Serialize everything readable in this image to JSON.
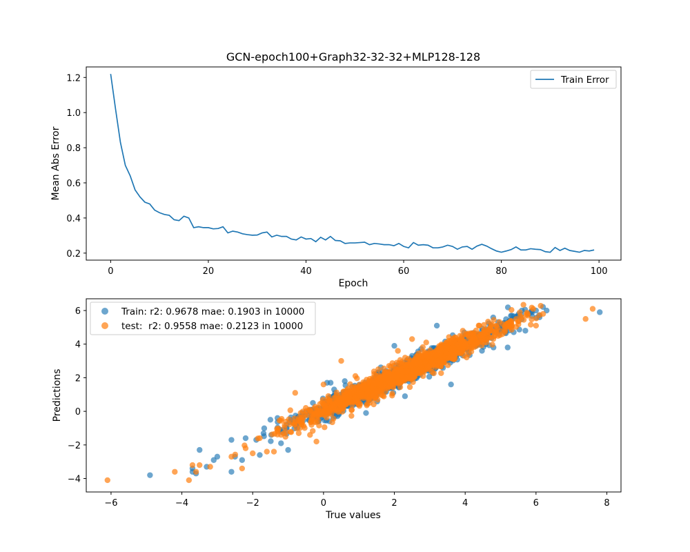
{
  "figure": {
    "title": "GCN-epoch100+Graph32-32-32+MLP128-128"
  },
  "chart_data": [
    {
      "type": "line",
      "xlabel": "Epoch",
      "ylabel": "Mean Abs Error",
      "xlim": [
        -5,
        104.5
      ],
      "ylim": [
        0.16,
        1.26
      ],
      "xticks": [
        "0",
        "20",
        "40",
        "60",
        "80",
        "100"
      ],
      "yticks": [
        "0.2",
        "0.4",
        "0.6",
        "0.8",
        "1.0",
        "1.2"
      ],
      "legend_position": "upper right",
      "grid": false,
      "series": [
        {
          "name": "Train Error",
          "color": "#1f77b4",
          "x": [
            0,
            1,
            2,
            3,
            4,
            5,
            6,
            7,
            8,
            9,
            10,
            11,
            12,
            13,
            14,
            15,
            16,
            17,
            18,
            19,
            20,
            21,
            22,
            23,
            24,
            25,
            26,
            27,
            28,
            29,
            30,
            31,
            32,
            33,
            34,
            35,
            36,
            37,
            38,
            39,
            40,
            41,
            42,
            43,
            44,
            45,
            46,
            47,
            48,
            49,
            50,
            51,
            52,
            53,
            54,
            55,
            56,
            57,
            58,
            59,
            60,
            61,
            62,
            63,
            64,
            65,
            66,
            67,
            68,
            69,
            70,
            71,
            72,
            73,
            74,
            75,
            76,
            77,
            78,
            79,
            80,
            81,
            82,
            83,
            84,
            85,
            86,
            87,
            88,
            89,
            90,
            91,
            92,
            93,
            94,
            95,
            96,
            97,
            98,
            99
          ],
          "values": [
            1.22,
            1.02,
            0.83,
            0.7,
            0.64,
            0.56,
            0.52,
            0.49,
            0.48,
            0.445,
            0.43,
            0.42,
            0.415,
            0.39,
            0.385,
            0.41,
            0.4,
            0.345,
            0.35,
            0.345,
            0.345,
            0.338,
            0.34,
            0.35,
            0.315,
            0.325,
            0.32,
            0.31,
            0.305,
            0.302,
            0.303,
            0.315,
            0.32,
            0.292,
            0.302,
            0.295,
            0.295,
            0.28,
            0.275,
            0.292,
            0.28,
            0.283,
            0.265,
            0.29,
            0.275,
            0.295,
            0.272,
            0.27,
            0.255,
            0.258,
            0.258,
            0.26,
            0.262,
            0.248,
            0.255,
            0.252,
            0.248,
            0.248,
            0.242,
            0.255,
            0.238,
            0.23,
            0.26,
            0.245,
            0.248,
            0.245,
            0.23,
            0.23,
            0.235,
            0.245,
            0.238,
            0.222,
            0.235,
            0.238,
            0.222,
            0.24,
            0.25,
            0.24,
            0.225,
            0.212,
            0.205,
            0.212,
            0.22,
            0.235,
            0.218,
            0.218,
            0.225,
            0.222,
            0.22,
            0.208,
            0.205,
            0.232,
            0.215,
            0.228,
            0.215,
            0.21,
            0.205,
            0.215,
            0.212,
            0.218
          ]
        }
      ]
    },
    {
      "type": "scatter",
      "xlabel": "True values",
      "ylabel": "Predictions",
      "xlim": [
        -6.7,
        8.4
      ],
      "ylim": [
        -4.8,
        6.7
      ],
      "xticks": [
        "−6",
        "−4",
        "−2",
        "0",
        "2",
        "4",
        "6",
        "8"
      ],
      "yticks": [
        "−4",
        "−2",
        "0",
        "2",
        "4",
        "6"
      ],
      "legend_position": "upper left",
      "grid": false,
      "series": [
        {
          "name": "Train: r2: 0.9678 mae: 0.1903 in 10000",
          "color": "#1f77b4",
          "opacity": 0.65,
          "n_drawn": 1400,
          "seed": 11,
          "slope": 0.97,
          "intercept": 0.1,
          "noise": 0.3,
          "outliers": [
            [
              -4.9,
              -3.8
            ],
            [
              -3.7,
              -3.4
            ],
            [
              -3.7,
              -3.6
            ],
            [
              -3.6,
              -3.7
            ],
            [
              -3.5,
              -2.3
            ],
            [
              -3.3,
              -3.3
            ],
            [
              -3.1,
              -2.9
            ],
            [
              -3.0,
              -2.7
            ],
            [
              -2.6,
              -1.7
            ],
            [
              -2.6,
              -3.6
            ],
            [
              -2.5,
              -2.7
            ],
            [
              -2.3,
              -2.9
            ],
            [
              -2.2,
              -1.6
            ],
            [
              -1.9,
              -1.7
            ],
            [
              -1.8,
              -2.6
            ],
            [
              -1.5,
              -0.5
            ],
            [
              -1.3,
              -0.4
            ],
            [
              -1.2,
              -1.9
            ],
            [
              -1.0,
              -2.3
            ],
            [
              -0.6,
              -0.1
            ],
            [
              -0.3,
              0.5
            ],
            [
              0.1,
              1.7
            ],
            [
              0.2,
              1.7
            ],
            [
              0.3,
              1.3
            ],
            [
              0.6,
              1.8
            ],
            [
              0.9,
              1.0
            ],
            [
              1.2,
              -0.1
            ],
            [
              1.5,
              2.2
            ],
            [
              2.0,
              3.9
            ],
            [
              2.3,
              0.9
            ],
            [
              2.5,
              3.3
            ],
            [
              3.2,
              3.1
            ],
            [
              3.2,
              5.1
            ],
            [
              3.6,
              1.6
            ],
            [
              4.6,
              4.9
            ],
            [
              4.8,
              3.8
            ],
            [
              5.2,
              3.8
            ],
            [
              5.6,
              6.0
            ],
            [
              5.7,
              4.8
            ],
            [
              5.8,
              5.8
            ],
            [
              6.0,
              6.0
            ],
            [
              6.1,
              5.6
            ],
            [
              6.3,
              6.0
            ],
            [
              7.8,
              5.9
            ]
          ]
        },
        {
          "name": "test:  r2: 0.9558 mae: 0.2123 in 10000",
          "color": "#ff7f0e",
          "opacity": 0.7,
          "n_drawn": 1400,
          "seed": 29,
          "slope": 0.97,
          "intercept": 0.1,
          "noise": 0.34,
          "outliers": [
            [
              -6.1,
              -4.1
            ],
            [
              -4.2,
              -3.6
            ],
            [
              -3.8,
              -4.1
            ],
            [
              -3.7,
              -3.2
            ],
            [
              -3.6,
              -3.6
            ],
            [
              -3.5,
              -3.2
            ],
            [
              -3.2,
              -3.3
            ],
            [
              -2.6,
              -2.7
            ],
            [
              -2.3,
              -3.4
            ],
            [
              -2.2,
              -2.2
            ],
            [
              -2.0,
              -2.5
            ],
            [
              -1.8,
              -1.6
            ],
            [
              -1.6,
              -2.4
            ],
            [
              -1.4,
              -2.4
            ],
            [
              -1.2,
              -1.4
            ],
            [
              -0.8,
              1.1
            ],
            [
              -0.7,
              -1.3
            ],
            [
              -0.5,
              0.2
            ],
            [
              -0.2,
              -1.8
            ],
            [
              0.0,
              1.6
            ],
            [
              0.5,
              3.0
            ],
            [
              0.9,
              2.1
            ],
            [
              1.3,
              0.5
            ],
            [
              1.6,
              1.6
            ],
            [
              2.1,
              3.6
            ],
            [
              2.5,
              4.3
            ],
            [
              2.9,
              4.1
            ],
            [
              3.4,
              2.9
            ],
            [
              4.4,
              5.1
            ],
            [
              4.6,
              4.1
            ],
            [
              5.1,
              4.9
            ],
            [
              5.6,
              5.6
            ],
            [
              6.0,
              5.1
            ],
            [
              6.2,
              5.8
            ],
            [
              7.4,
              5.5
            ],
            [
              7.6,
              6.1
            ]
          ]
        }
      ]
    }
  ]
}
